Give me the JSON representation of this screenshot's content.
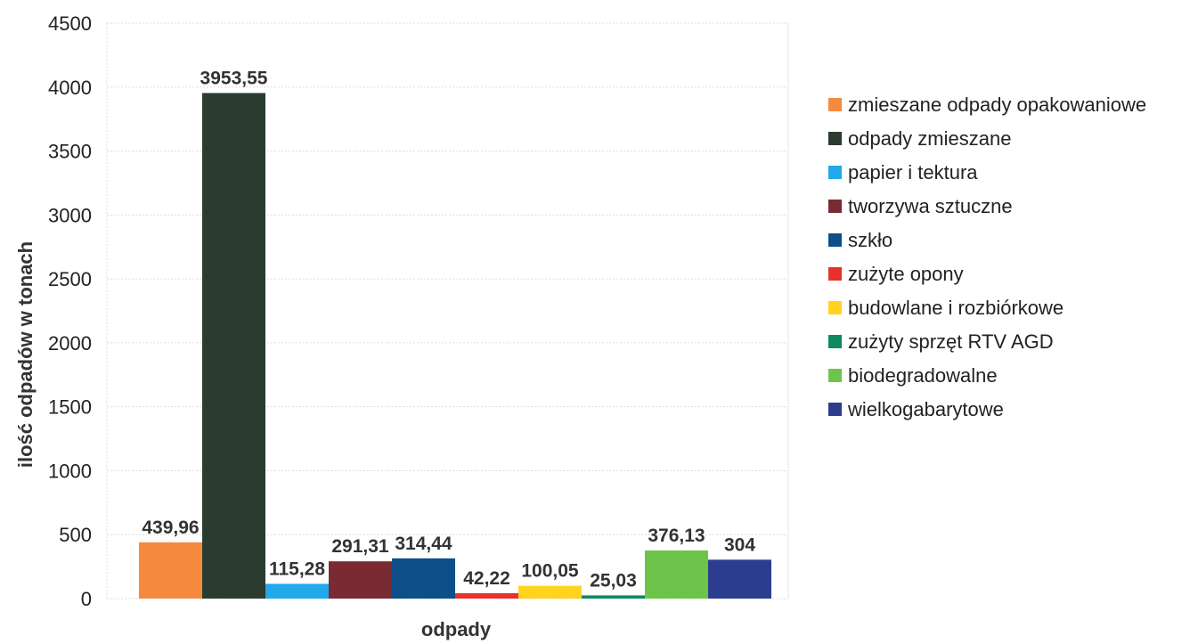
{
  "chart_data": {
    "type": "bar",
    "xlabel": "odpady",
    "ylabel": "ilość odpadów w tonach",
    "ylim": [
      0,
      4500
    ],
    "yticks": [
      0,
      500,
      1000,
      1500,
      2000,
      2500,
      3000,
      3500,
      4000,
      4500
    ],
    "grid": true,
    "legend_position": "right",
    "series": [
      {
        "name": "zmieszane odpady opakowaniowe",
        "value": 439.96,
        "label": "439,96",
        "color": "#F58A3F"
      },
      {
        "name": "odpady zmieszane",
        "value": 3953.55,
        "label": "3953,55",
        "color": "#2B3B30"
      },
      {
        "name": "papier i tektura",
        "value": 115.28,
        "label": "115,28",
        "color": "#21A9EC"
      },
      {
        "name": "tworzywa sztuczne",
        "value": 291.31,
        "label": "291,31",
        "color": "#7A2A33"
      },
      {
        "name": "szkło",
        "value": 314.44,
        "label": "314,44",
        "color": "#0E4F8A"
      },
      {
        "name": "zużyte opony",
        "value": 42.22,
        "label": "42,22",
        "color": "#E5322D"
      },
      {
        "name": "budowlane i rozbiórkowe",
        "value": 100.05,
        "label": "100,05",
        "color": "#FFD320"
      },
      {
        "name": "zużyty sprzęt RTV AGD",
        "value": 25.03,
        "label": "25,03",
        "color": "#0E8A5F"
      },
      {
        "name": "biodegradowalne",
        "value": 376.13,
        "label": "376,13",
        "color": "#6CC54A"
      },
      {
        "name": "wielkogabarytowe",
        "value": 304,
        "label": "304",
        "color": "#2C3D8F"
      }
    ]
  }
}
